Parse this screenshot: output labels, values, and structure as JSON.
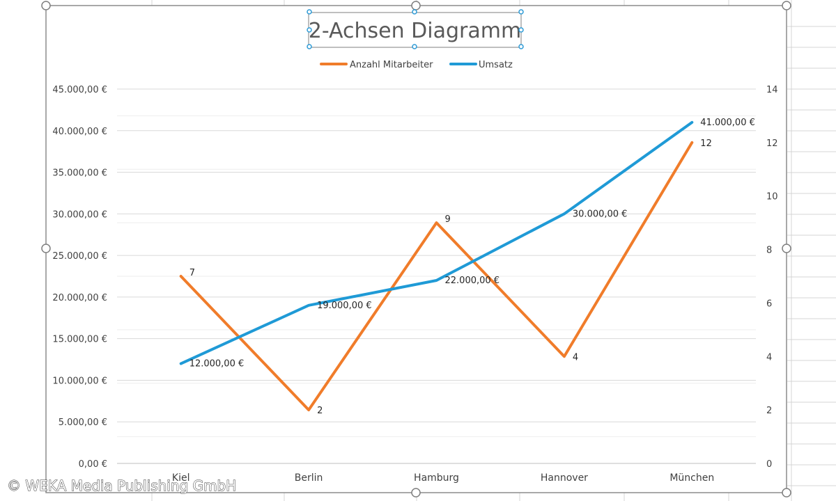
{
  "chart_data": {
    "type": "line",
    "title": "2-Achsen Diagramm",
    "categories": [
      "Kiel",
      "Berlin",
      "Hamburg",
      "Hannover",
      "München"
    ],
    "series": [
      {
        "name": "Anzahl Mitarbeiter",
        "values": [
          7,
          2,
          9,
          4,
          12
        ],
        "axis": "secondary",
        "color": "#f07c2a",
        "labels": [
          "7",
          "2",
          "9",
          "4",
          "12"
        ]
      },
      {
        "name": "Umsatz",
        "values": [
          12000,
          19000,
          22000,
          30000,
          41000
        ],
        "axis": "primary",
        "color": "#1f9ad6",
        "labels": [
          "12.000,00 €",
          "19.000,00 €",
          "22.000,00 €",
          "30.000,00 €",
          "41.000,00 €"
        ]
      }
    ],
    "y_primary": {
      "ylim": [
        0,
        45000
      ],
      "ticks": [
        "0,00 €",
        "5.000,00 €",
        "10.000,00 €",
        "15.000,00 €",
        "20.000,00 €",
        "25.000,00 €",
        "30.000,00 €",
        "35.000,00 €",
        "40.000,00 €",
        "45.000,00 €"
      ]
    },
    "y_secondary": {
      "ylim": [
        0,
        14
      ],
      "ticks": [
        "0",
        "2",
        "4",
        "6",
        "8",
        "10",
        "12",
        "14"
      ]
    },
    "legend_position": "top",
    "grid": true
  },
  "watermark": "© WEKA Media Publishing GmbH"
}
